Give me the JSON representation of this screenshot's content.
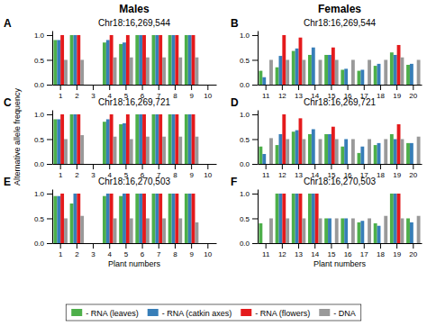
{
  "chart_data": [
    {
      "type": "bar",
      "title": "Chr18:16,269,544",
      "annotations": [
        "A",
        "Males"
      ],
      "legend": "bottom",
      "categories": [
        "1",
        "2",
        "3",
        "4",
        "5",
        "6",
        "7",
        "8",
        "9",
        "10"
      ],
      "series": [
        {
          "name": "- RNA (leaves)",
          "color": "#4daf4a",
          "values": [
            0.9,
            1.0,
            0.0,
            0.85,
            0.82,
            1.0,
            1.0,
            1.0,
            1.0,
            0.0
          ]
        },
        {
          "name": "- RNA (catkin axes)",
          "color": "#377eb8",
          "values": [
            0.9,
            1.0,
            0.0,
            0.9,
            0.85,
            1.0,
            1.0,
            1.0,
            1.0,
            0.0
          ]
        },
        {
          "name": "- RNA (flowers)",
          "color": "#e41a1c",
          "values": [
            1.0,
            1.0,
            0.0,
            1.0,
            1.0,
            1.0,
            1.0,
            1.0,
            1.0,
            0.0
          ]
        },
        {
          "name": "- DNA",
          "color": "#999999",
          "values": [
            0.5,
            0.5,
            0.0,
            0.55,
            0.55,
            0.55,
            0.55,
            0.55,
            0.55,
            0.0
          ]
        }
      ],
      "ylim": [
        0,
        1.09
      ],
      "yticks": [
        {
          "value": 0,
          "label": "0.0"
        },
        0.5,
        {
          "value": 1,
          "label": "1.0"
        }
      ]
    },
    {
      "type": "bar",
      "title": "Chr18:16,269,544",
      "annotations": [
        "B",
        "Females"
      ],
      "categories": [
        "11",
        "12",
        "13",
        "14",
        "15",
        "16",
        "17",
        "18",
        "19",
        "20"
      ],
      "series": [
        {
          "name": "- RNA (leaves)",
          "color": "#4daf4a",
          "values": [
            0.28,
            0.35,
            0.68,
            0.6,
            0.6,
            0.3,
            0.28,
            0.38,
            0.65,
            0.4
          ]
        },
        {
          "name": "- RNA (catkin axes)",
          "color": "#377eb8",
          "values": [
            0.15,
            0.58,
            0.73,
            0.75,
            0.6,
            0.32,
            0.3,
            0.42,
            0.6,
            0.42
          ]
        },
        {
          "name": "- RNA (flowers)",
          "color": "#e41a1c",
          "values": [
            0.0,
            1.0,
            0.95,
            0.0,
            0.75,
            0.0,
            0.0,
            0.0,
            0.8,
            0.0
          ]
        },
        {
          "name": "- DNA",
          "color": "#999999",
          "values": [
            0.5,
            0.5,
            0.5,
            0.5,
            0.5,
            0.5,
            0.5,
            0.5,
            0.55,
            0.5
          ]
        }
      ],
      "ylim": [
        0,
        1.09
      ],
      "yticks": [
        {
          "value": 0,
          "label": "0.0"
        },
        0.5,
        {
          "value": 1,
          "label": "1.0"
        }
      ]
    },
    {
      "type": "bar",
      "title": "Chr18:16,269,721",
      "annotations": [
        "C"
      ],
      "y_label": "Alternative allele frequency",
      "categories": [
        "1",
        "2",
        "3",
        "4",
        "5",
        "6",
        "7",
        "8",
        "9",
        "10"
      ],
      "series": [
        {
          "name": "- RNA (leaves)",
          "color": "#4daf4a",
          "values": [
            0.9,
            1.0,
            0.0,
            0.85,
            0.8,
            1.0,
            1.0,
            1.0,
            1.0,
            0.0
          ]
        },
        {
          "name": "- RNA (catkin axes)",
          "color": "#377eb8",
          "values": [
            0.9,
            1.0,
            0.0,
            0.9,
            0.82,
            1.0,
            1.0,
            1.0,
            1.0,
            0.0
          ]
        },
        {
          "name": "- RNA (flowers)",
          "color": "#e41a1c",
          "values": [
            1.0,
            1.0,
            0.0,
            1.0,
            1.0,
            1.0,
            1.0,
            1.0,
            1.0,
            0.0
          ]
        },
        {
          "name": "- DNA",
          "color": "#999999",
          "values": [
            0.5,
            0.58,
            0.0,
            0.55,
            0.5,
            0.55,
            0.55,
            0.55,
            0.55,
            0.0
          ]
        }
      ],
      "ylim": [
        0,
        1.09
      ],
      "yticks": [
        {
          "value": 0,
          "label": "0.0"
        },
        0.5,
        {
          "value": 1,
          "label": "1.0"
        }
      ]
    },
    {
      "type": "bar",
      "title": "Chr18:16,269,721",
      "annotations": [
        "D"
      ],
      "categories": [
        "11",
        "12",
        "13",
        "14",
        "15",
        "16",
        "17",
        "18",
        "19",
        "20"
      ],
      "series": [
        {
          "name": "- RNA (leaves)",
          "color": "#4daf4a",
          "values": [
            0.35,
            0.38,
            0.65,
            0.6,
            0.6,
            0.35,
            0.22,
            0.38,
            0.6,
            0.42
          ]
        },
        {
          "name": "- RNA (catkin axes)",
          "color": "#377eb8",
          "values": [
            0.2,
            0.6,
            0.68,
            0.7,
            0.6,
            0.5,
            0.35,
            0.42,
            0.5,
            0.42
          ]
        },
        {
          "name": "- RNA (flowers)",
          "color": "#e41a1c",
          "values": [
            0.0,
            1.0,
            0.92,
            0.0,
            0.75,
            0.0,
            0.0,
            0.0,
            0.8,
            0.0
          ]
        },
        {
          "name": "- DNA",
          "color": "#999999",
          "values": [
            0.52,
            0.5,
            0.5,
            0.5,
            0.5,
            0.5,
            0.5,
            0.5,
            0.5,
            0.55
          ]
        }
      ],
      "ylim": [
        0,
        1.09
      ],
      "yticks": [
        {
          "value": 0,
          "label": "0.0"
        },
        0.5,
        {
          "value": 1,
          "label": "1.0"
        }
      ]
    },
    {
      "type": "bar",
      "title": "Chr18:16,270,503",
      "annotations": [
        "E"
      ],
      "x_label": "Plant numbers",
      "categories": [
        "1",
        "2",
        "3",
        "4",
        "5",
        "6",
        "7",
        "8",
        "9",
        "10"
      ],
      "series": [
        {
          "name": "- RNA (leaves)",
          "color": "#4daf4a",
          "values": [
            0.95,
            0.8,
            0.0,
            0.95,
            0.95,
            1.0,
            1.0,
            1.0,
            1.0,
            0.0
          ]
        },
        {
          "name": "- RNA (catkin axes)",
          "color": "#377eb8",
          "values": [
            0.95,
            1.0,
            0.0,
            1.0,
            1.0,
            1.0,
            1.0,
            1.0,
            1.0,
            0.0
          ]
        },
        {
          "name": "- RNA (flowers)",
          "color": "#e41a1c",
          "values": [
            1.0,
            1.0,
            0.0,
            1.0,
            1.0,
            1.0,
            1.0,
            1.0,
            1.0,
            0.0
          ]
        },
        {
          "name": "- DNA",
          "color": "#999999",
          "values": [
            0.5,
            0.55,
            0.0,
            0.5,
            0.5,
            0.5,
            0.5,
            0.5,
            0.42,
            0.0
          ]
        }
      ],
      "ylim": [
        0,
        1.09
      ],
      "yticks": [
        {
          "value": 0,
          "label": "0.0"
        },
        0.5,
        {
          "value": 1,
          "label": "1.0"
        }
      ]
    },
    {
      "type": "bar",
      "title": "Chr18:16,270,503",
      "annotations": [
        "F"
      ],
      "x_label": "Plant numbers",
      "categories": [
        "11",
        "12",
        "13",
        "14",
        "15",
        "16",
        "17",
        "18",
        "19",
        "20"
      ],
      "series": [
        {
          "name": "- RNA (leaves)",
          "color": "#4daf4a",
          "values": [
            0.4,
            1.0,
            1.0,
            1.0,
            0.5,
            0.5,
            0.42,
            0.4,
            1.0,
            0.5
          ]
        },
        {
          "name": "- RNA (catkin axes)",
          "color": "#377eb8",
          "values": [
            0.0,
            1.0,
            1.0,
            1.0,
            0.5,
            0.5,
            0.45,
            0.35,
            1.0,
            0.42
          ]
        },
        {
          "name": "- RNA (flowers)",
          "color": "#e41a1c",
          "values": [
            0.0,
            1.0,
            1.0,
            1.0,
            0.0,
            0.0,
            0.0,
            0.0,
            1.0,
            0.0
          ]
        },
        {
          "name": "- DNA",
          "color": "#999999",
          "values": [
            0.5,
            0.5,
            0.5,
            0.5,
            0.5,
            0.5,
            0.5,
            0.55,
            0.5,
            0.55
          ]
        }
      ],
      "ylim": [
        0,
        1.09
      ],
      "yticks": [
        {
          "value": 0,
          "label": "0.0"
        },
        0.5,
        {
          "value": 1,
          "label": "1.0"
        }
      ]
    }
  ]
}
